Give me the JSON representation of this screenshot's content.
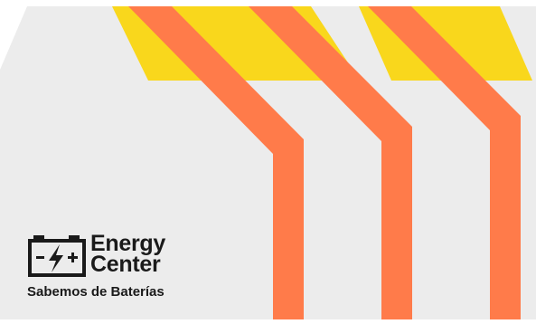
{
  "brand": {
    "name_line1": "Energy",
    "name_line2": "Center",
    "tagline": "Sabemos de Baterías",
    "logo_icon": "battery-bolt-icon",
    "logo_minus": "–",
    "logo_plus": "+"
  },
  "colors": {
    "background": "#ececec",
    "stripe_yellow": "#f9d71c",
    "stripe_orange": "#ff7b4a",
    "text": "#1a1a1a"
  }
}
